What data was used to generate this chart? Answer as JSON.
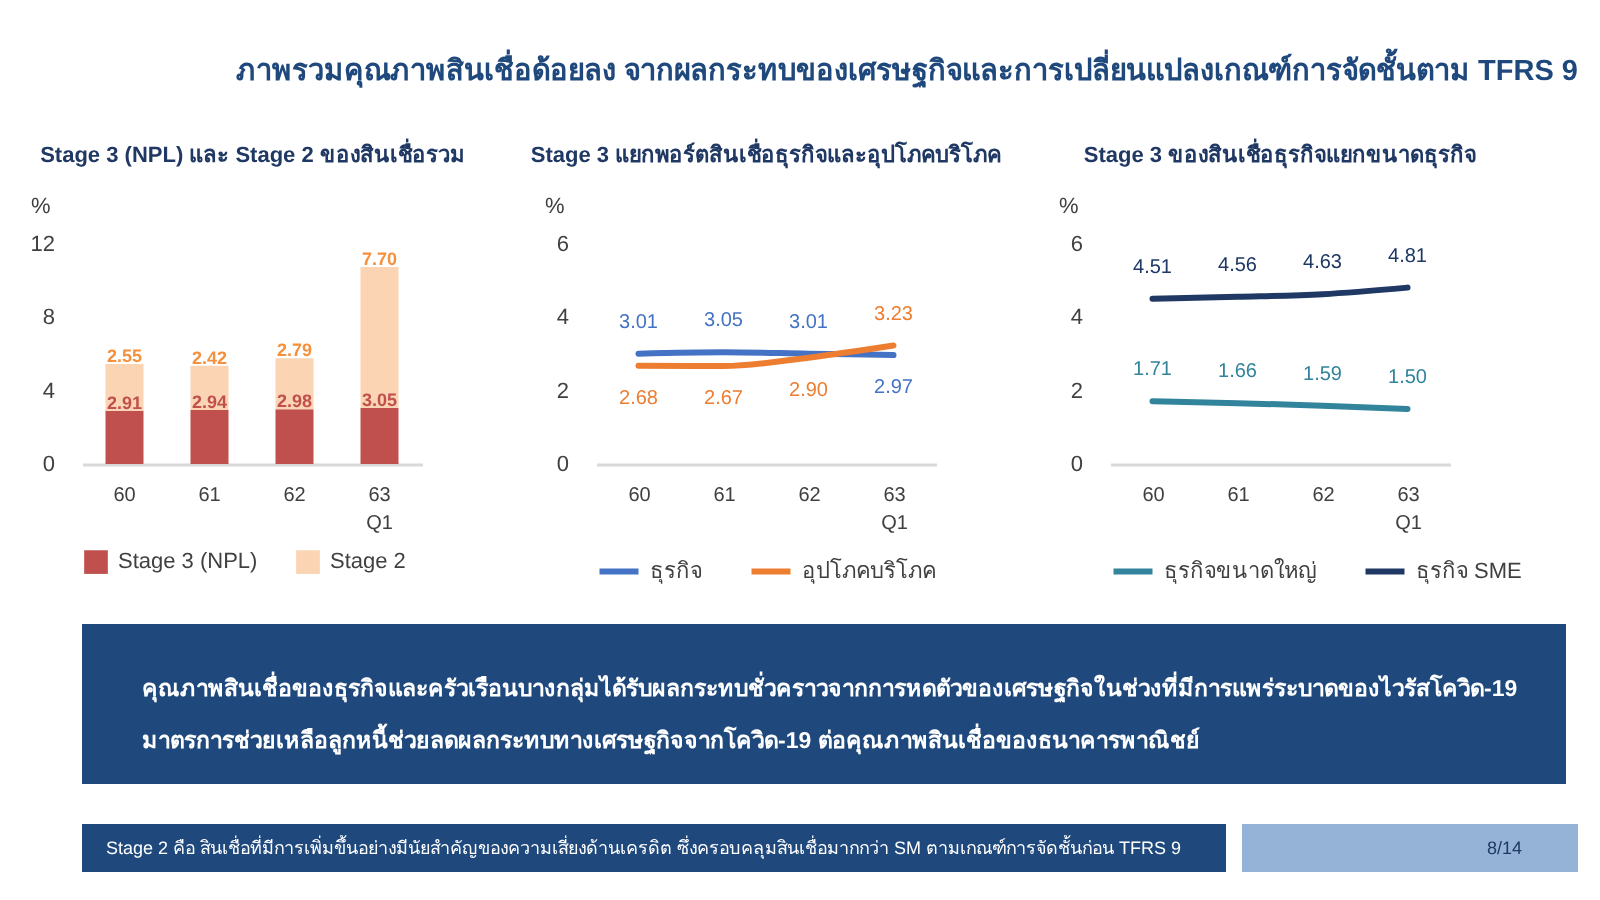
{
  "chart_data": [
    {
      "type": "other",
      "title": "ภาพรวมคุณภาพสินเชื่อด้อยลง จากผลกระทบของเศรษฐกิจและการเปลี่ยนแปลงเกณฑ์การจัดชั้นตาม TFRS 9"
    },
    {
      "type": "bar",
      "title": "Stage 3 (NPL)  และ Stage 2 ของสินเชื่อรวม",
      "ylabel": "%",
      "categories": [
        "60",
        "61",
        "62",
        "63\nQ1"
      ],
      "stacked": true,
      "series": [
        {
          "name": "Stage 3 (NPL)",
          "color": "#c0504d",
          "values": [
            2.91,
            2.94,
            2.98,
            3.05
          ],
          "value_labels": [
            "2.91",
            "2.94",
            "2.98",
            "3.05"
          ]
        },
        {
          "name": "Stage 2",
          "color": "#fbd4b4",
          "values": [
            2.55,
            2.42,
            2.79,
            7.7
          ],
          "value_labels": [
            "2.55",
            "2.42",
            "2.79",
            "7.70"
          ]
        }
      ],
      "ylim": [
        0,
        12
      ],
      "yticks": [
        0,
        4,
        8,
        12
      ],
      "legend": "bottom"
    },
    {
      "type": "line",
      "title": "Stage 3 แยกพอร์ตสินเชื่อธุรกิจและอุปโภคบริโภค",
      "ylabel": "%",
      "categories": [
        "60",
        "61",
        "62",
        "63\nQ1"
      ],
      "series": [
        {
          "name": "ธุรกิจ",
          "color": "#4472c4",
          "values": [
            3.01,
            3.05,
            3.01,
            2.97
          ],
          "value_labels": [
            "3.01",
            "3.05",
            "3.01",
            "2.97"
          ]
        },
        {
          "name": "อุปโภคบริโภค",
          "color": "#ed7d31",
          "values": [
            2.68,
            2.67,
            2.9,
            3.23
          ],
          "value_labels": [
            "2.68",
            "2.67",
            "2.90",
            "3.23"
          ]
        }
      ],
      "ylim": [
        0,
        6
      ],
      "yticks": [
        0,
        2,
        4,
        6
      ],
      "legend": "bottom"
    },
    {
      "type": "line",
      "title": "Stage 3 ของสินเชื่อธุรกิจแยกขนาดธุรกิจ",
      "ylabel": "%",
      "categories": [
        "60",
        "61",
        "62",
        "63\nQ1"
      ],
      "series": [
        {
          "name": "ธุรกิจขนาดใหญ่",
          "color": "#31849b",
          "values": [
            1.71,
            1.66,
            1.59,
            1.5
          ],
          "value_labels": [
            "1.71",
            "1.66",
            "1.59",
            "1.50"
          ]
        },
        {
          "name": "ธุรกิจ SME",
          "color": "#1f3864",
          "values": [
            4.51,
            4.56,
            4.63,
            4.81
          ],
          "value_labels": [
            "4.51",
            "4.56",
            "4.63",
            "4.81"
          ]
        }
      ],
      "ylim": [
        0,
        6
      ],
      "yticks": [
        0,
        2,
        4,
        6
      ],
      "legend": "bottom"
    },
    {
      "type": "other",
      "annotations": [
        "คุณภาพสินเชื่อของธุรกิจและครัวเรือนบางกลุ่มได้รับผลกระทบชั่วคราวจากการหดตัวของเศรษฐกิจในช่วงที่มีการแพร่ระบาดของไวรัสโควิด-19",
        "มาตรการช่วยเหลือลูกหนี้ช่วยลดผลกระทบทางเศรษฐกิจจากโควิด-19 ต่อคุณภาพสินเชื่อของธนาคารพาณิชย์"
      ]
    },
    {
      "type": "other",
      "annotations": [
        "Stage 2 คือ สินเชื่อที่มีการเพิ่มขึ้นอย่างมีนัยสำคัญของความเสี่ยงด้านเครดิต ซึ่งครอบคลุมสินเชื่อมากกว่า SM ตามเกณฑ์การจัดชั้นก่อน TFRS 9",
        "8/14"
      ]
    }
  ]
}
